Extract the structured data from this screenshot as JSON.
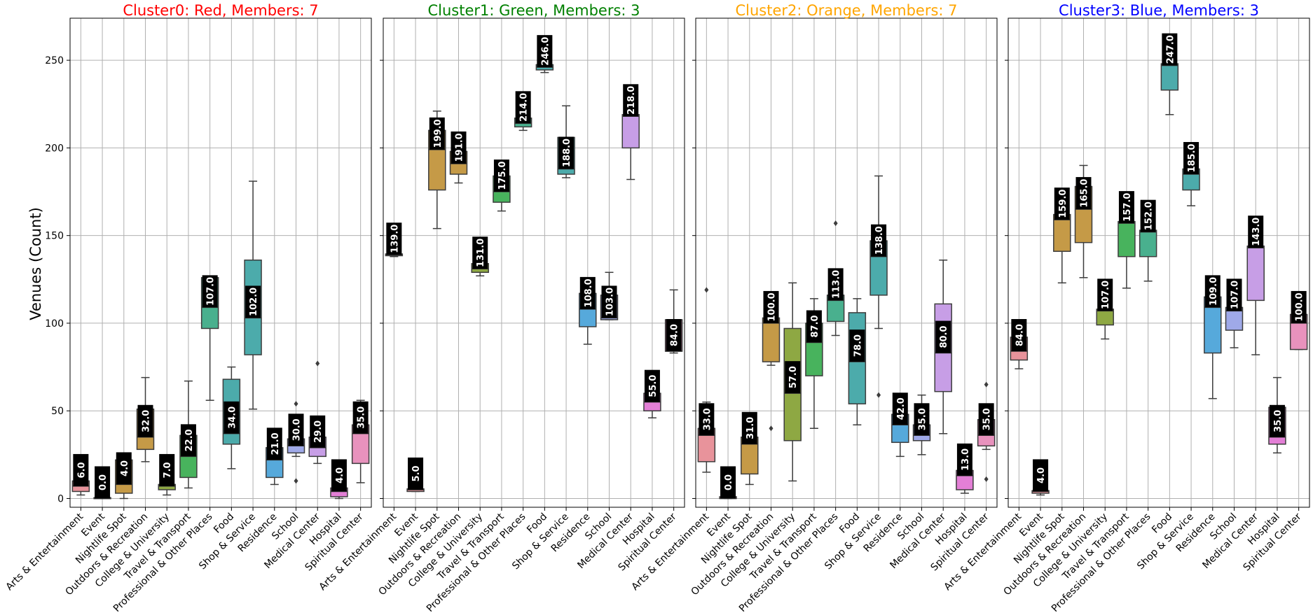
{
  "figure": {
    "ylabel": "Venues (Count)",
    "yticks": [
      0,
      50,
      100,
      150,
      200,
      250
    ]
  },
  "chart_data": [
    {
      "type": "box",
      "title": "Cluster0: Red, Members: 7",
      "title_color": "#ff0000",
      "ylabel": "Venues (Count)",
      "ylim": [
        -5,
        274
      ],
      "grid": true,
      "boxes": [
        {
          "category": "Arts & Entertainment",
          "color": "#e8939b",
          "whisker_low": 2,
          "q1": 4,
          "median": 7,
          "q3": 10,
          "whisker_high": 12,
          "outliers": [],
          "label": "6.0"
        },
        {
          "category": "Event",
          "color": "#e8939b",
          "whisker_low": 0,
          "q1": 0,
          "median": 0,
          "q3": 0.5,
          "whisker_high": 1,
          "outliers": [],
          "label": "0.0"
        },
        {
          "category": "Nightlife Spot",
          "color": "#c59a47",
          "whisker_low": 0,
          "q1": 3,
          "median": 8,
          "q3": 22,
          "whisker_high": 24,
          "outliers": [],
          "label": "4.0"
        },
        {
          "category": "Outdoors & Recreation",
          "color": "#c59a47",
          "whisker_low": 21,
          "q1": 28,
          "median": 35,
          "q3": 51,
          "whisker_high": 69,
          "outliers": [],
          "label": "32.0"
        },
        {
          "category": "College & University",
          "color": "#8ea843",
          "whisker_low": 2,
          "q1": 5,
          "median": 7,
          "q3": 8,
          "whisker_high": 21,
          "outliers": [
            23
          ],
          "label": "7.0"
        },
        {
          "category": "Travel & Transport",
          "color": "#48b35d",
          "whisker_low": 6,
          "q1": 12,
          "median": 24,
          "q3": 36,
          "whisker_high": 67,
          "outliers": [],
          "label": "22.0"
        },
        {
          "category": "Professional & Other Places",
          "color": "#49b08e",
          "whisker_low": 56,
          "q1": 97,
          "median": 109,
          "q3": 126,
          "whisker_high": 126,
          "outliers": [],
          "label": "107.0"
        },
        {
          "category": "Food",
          "color": "#4cabab",
          "whisker_low": 17,
          "q1": 31,
          "median": 37,
          "q3": 68,
          "whisker_high": 75,
          "outliers": [],
          "label": "34.0"
        },
        {
          "category": "Shop & Service",
          "color": "#4cabab",
          "whisker_low": 51,
          "q1": 82,
          "median": 103,
          "q3": 136,
          "whisker_high": 181,
          "outliers": [],
          "label": "102.0"
        },
        {
          "category": "Residence",
          "color": "#56a9db",
          "whisker_low": 8,
          "q1": 12,
          "median": 22,
          "q3": 29,
          "whisker_high": 33,
          "outliers": [],
          "label": "21.0"
        },
        {
          "category": "School",
          "color": "#9fa9e8",
          "whisker_low": 24,
          "q1": 26,
          "median": 30,
          "q3": 34,
          "whisker_high": 39,
          "outliers": [
            10,
            54
          ],
          "label": "30.0"
        },
        {
          "category": "Medical Center",
          "color": "#c79ee6",
          "whisker_low": 20,
          "q1": 24,
          "median": 29,
          "q3": 35,
          "whisker_high": 37,
          "outliers": [
            77
          ],
          "label": "29.0"
        },
        {
          "category": "Hospital",
          "color": "#e37fd6",
          "whisker_low": 0,
          "q1": 1,
          "median": 4,
          "q3": 6,
          "whisker_high": 6,
          "outliers": [],
          "label": "4.0"
        },
        {
          "category": "Spiritual Center",
          "color": "#e892bd",
          "whisker_low": 9,
          "q1": 20,
          "median": 37,
          "q3": 42,
          "whisker_high": 56,
          "outliers": [],
          "label": "35.0"
        }
      ]
    },
    {
      "type": "box",
      "title": "Cluster1: Green, Members: 3",
      "title_color": "#008000",
      "ylim": [
        -5,
        274
      ],
      "grid": true,
      "boxes": [
        {
          "category": "Arts & Entertainment",
          "color": "#e8939b",
          "whisker_low": 138,
          "q1": 138.5,
          "median": 139,
          "q3": 139.5,
          "whisker_high": 140,
          "outliers": [],
          "label": "139.0"
        },
        {
          "category": "Event",
          "color": "#e8939b",
          "whisker_low": 4,
          "q1": 4,
          "median": 5,
          "q3": 5.5,
          "whisker_high": 6,
          "outliers": [],
          "label": "5.0"
        },
        {
          "category": "Nightlife Spot",
          "color": "#c59a47",
          "whisker_low": 154,
          "q1": 176,
          "median": 199,
          "q3": 210,
          "whisker_high": 221,
          "outliers": [],
          "label": "199.0"
        },
        {
          "category": "Outdoors & Recreation",
          "color": "#c59a47",
          "whisker_low": 180,
          "q1": 185,
          "median": 191,
          "q3": 198,
          "whisker_high": 205,
          "outliers": [],
          "label": "191.0"
        },
        {
          "category": "College & University",
          "color": "#8ea843",
          "whisker_low": 127,
          "q1": 129,
          "median": 131,
          "q3": 134,
          "whisker_high": 137,
          "outliers": [],
          "label": "131.0"
        },
        {
          "category": "Travel & Transport",
          "color": "#48b35d",
          "whisker_low": 164,
          "q1": 169,
          "median": 175,
          "q3": 184,
          "whisker_high": 184,
          "outliers": [],
          "label": "175.0"
        },
        {
          "category": "Professional & Other Places",
          "color": "#49b08e",
          "whisker_low": 210,
          "q1": 212,
          "median": 214,
          "q3": 217,
          "whisker_high": 220,
          "outliers": [],
          "label": "214.0"
        },
        {
          "category": "Food",
          "color": "#4cabab",
          "whisker_low": 243,
          "q1": 244.5,
          "median": 246,
          "q3": 247.5,
          "whisker_high": 249,
          "outliers": [],
          "label": "246.0"
        },
        {
          "category": "Shop & Service",
          "color": "#4cabab",
          "whisker_low": 183,
          "q1": 185,
          "median": 188,
          "q3": 206,
          "whisker_high": 224,
          "outliers": [],
          "label": "188.0"
        },
        {
          "category": "Residence",
          "color": "#56a9db",
          "whisker_low": 88,
          "q1": 98,
          "median": 108,
          "q3": 117,
          "whisker_high": 126,
          "outliers": [],
          "label": "108.0"
        },
        {
          "category": "School",
          "color": "#9fa9e8",
          "whisker_low": 102,
          "q1": 102,
          "median": 103,
          "q3": 116,
          "whisker_high": 129,
          "outliers": [],
          "label": "103.0"
        },
        {
          "category": "Medical Center",
          "color": "#c79ee6",
          "whisker_low": 182,
          "q1": 200,
          "median": 218,
          "q3": 219,
          "whisker_high": 220,
          "outliers": [],
          "label": "218.0"
        },
        {
          "category": "Hospital",
          "color": "#e37fd6",
          "whisker_low": 46,
          "q1": 50,
          "median": 55,
          "q3": 60,
          "whisker_high": 60,
          "outliers": [],
          "label": "55.0"
        },
        {
          "category": "Spiritual Center",
          "color": "#e892bd",
          "whisker_low": 83,
          "q1": 84,
          "median": 84,
          "q3": 102,
          "whisker_high": 119,
          "outliers": [],
          "label": "84.0"
        }
      ]
    },
    {
      "type": "box",
      "title": "Cluster2: Orange, Members: 7",
      "title_color": "#ffa500",
      "ylim": [
        -5,
        274
      ],
      "grid": true,
      "boxes": [
        {
          "category": "Arts & Entertainment",
          "color": "#e8939b",
          "whisker_low": 15,
          "q1": 21,
          "median": 36,
          "q3": 40,
          "whisker_high": 55,
          "outliers": [
            119
          ],
          "label": "33.0"
        },
        {
          "category": "Event",
          "color": "#e8939b",
          "whisker_low": 0,
          "q1": 0,
          "median": 0,
          "q3": 1,
          "whisker_high": 2,
          "outliers": [],
          "label": "0.0"
        },
        {
          "category": "Nightlife Spot",
          "color": "#c59a47",
          "whisker_low": 8,
          "q1": 14,
          "median": 31,
          "q3": 35,
          "whisker_high": 35,
          "outliers": [],
          "label": "31.0"
        },
        {
          "category": "Outdoors & Recreation",
          "color": "#c59a47",
          "whisker_low": 76,
          "q1": 78,
          "median": 100,
          "q3": 103,
          "whisker_high": 103,
          "outliers": [
            40
          ],
          "label": "100.0"
        },
        {
          "category": "College & University",
          "color": "#8ea843",
          "whisker_low": 10,
          "q1": 33,
          "median": 60,
          "q3": 97,
          "whisker_high": 123,
          "outliers": [],
          "label": "57.0"
        },
        {
          "category": "Travel & Transport",
          "color": "#48b35d",
          "whisker_low": 40,
          "q1": 70,
          "median": 89,
          "q3": 100,
          "whisker_high": 114,
          "outliers": [],
          "label": "87.0"
        },
        {
          "category": "Professional & Other Places",
          "color": "#49b08e",
          "whisker_low": 93,
          "q1": 101,
          "median": 113,
          "q3": 116,
          "whisker_high": 116,
          "outliers": [
            157
          ],
          "label": "113.0"
        },
        {
          "category": "Food",
          "color": "#4cabab",
          "whisker_low": 42,
          "q1": 54,
          "median": 78,
          "q3": 106,
          "whisker_high": 114,
          "outliers": [],
          "label": "78.0"
        },
        {
          "category": "Shop & Service",
          "color": "#4cabab",
          "whisker_low": 97,
          "q1": 116,
          "median": 138,
          "q3": 147,
          "whisker_high": 184,
          "outliers": [
            59
          ],
          "label": "138.0"
        },
        {
          "category": "Residence",
          "color": "#56a9db",
          "whisker_low": 24,
          "q1": 32,
          "median": 42,
          "q3": 48,
          "whisker_high": 49,
          "outliers": [],
          "label": "42.0"
        },
        {
          "category": "School",
          "color": "#9fa9e8",
          "whisker_low": 25,
          "q1": 33,
          "median": 36,
          "q3": 42,
          "whisker_high": 59,
          "outliers": [],
          "label": "35.0"
        },
        {
          "category": "Medical Center",
          "color": "#c79ee6",
          "whisker_low": 37,
          "q1": 61,
          "median": 83,
          "q3": 111,
          "whisker_high": 136,
          "outliers": [],
          "label": "80.0"
        },
        {
          "category": "Hospital",
          "color": "#e37fd6",
          "whisker_low": 3,
          "q1": 5,
          "median": 13,
          "q3": 16,
          "whisker_high": 16,
          "outliers": [],
          "label": "13.0"
        },
        {
          "category": "Spiritual Center",
          "color": "#e892bd",
          "whisker_low": 28,
          "q1": 30,
          "median": 36,
          "q3": 45,
          "whisker_high": 50,
          "outliers": [
            11,
            65
          ],
          "label": "35.0"
        }
      ]
    },
    {
      "type": "box",
      "title": "Cluster3: Blue, Members: 3",
      "title_color": "#0000ff",
      "ylim": [
        -5,
        274
      ],
      "grid": true,
      "boxes": [
        {
          "category": "Arts & Entertainment",
          "color": "#e8939b",
          "whisker_low": 74,
          "q1": 79,
          "median": 84,
          "q3": 92,
          "whisker_high": 100,
          "outliers": [],
          "label": "84.0"
        },
        {
          "category": "Event",
          "color": "#e8939b",
          "whisker_low": 2,
          "q1": 3,
          "median": 4,
          "q3": 4.5,
          "whisker_high": 5,
          "outliers": [],
          "label": "4.0"
        },
        {
          "category": "Nightlife Spot",
          "color": "#c59a47",
          "whisker_low": 123,
          "q1": 141,
          "median": 159,
          "q3": 162,
          "whisker_high": 165,
          "outliers": [],
          "label": "159.0"
        },
        {
          "category": "Outdoors & Recreation",
          "color": "#c59a47",
          "whisker_low": 126,
          "q1": 146,
          "median": 165,
          "q3": 178,
          "whisker_high": 190,
          "outliers": [],
          "label": "165.0"
        },
        {
          "category": "College & University",
          "color": "#8ea843",
          "whisker_low": 91,
          "q1": 99,
          "median": 107,
          "q3": 108,
          "whisker_high": 109,
          "outliers": [],
          "label": "107.0"
        },
        {
          "category": "Travel & Transport",
          "color": "#48b35d",
          "whisker_low": 120,
          "q1": 138,
          "median": 157,
          "q3": 158,
          "whisker_high": 159,
          "outliers": [],
          "label": "157.0"
        },
        {
          "category": "Professional & Other Places",
          "color": "#49b08e",
          "whisker_low": 124,
          "q1": 138,
          "median": 152,
          "q3": 153,
          "whisker_high": 154,
          "outliers": [],
          "label": "152.0"
        },
        {
          "category": "Food",
          "color": "#4cabab",
          "whisker_low": 219,
          "q1": 233,
          "median": 247,
          "q3": 248,
          "whisker_high": 249,
          "outliers": [],
          "label": "247.0"
        },
        {
          "category": "Shop & Service",
          "color": "#4cabab",
          "whisker_low": 167,
          "q1": 176,
          "median": 185,
          "q3": 188,
          "whisker_high": 190,
          "outliers": [],
          "label": "185.0"
        },
        {
          "category": "Residence",
          "color": "#56a9db",
          "whisker_low": 57,
          "q1": 83,
          "median": 109,
          "q3": 115,
          "whisker_high": 120,
          "outliers": [],
          "label": "109.0"
        },
        {
          "category": "School",
          "color": "#9fa9e8",
          "whisker_low": 86,
          "q1": 96,
          "median": 107,
          "q3": 109,
          "whisker_high": 111,
          "outliers": [],
          "label": "107.0"
        },
        {
          "category": "Medical Center",
          "color": "#c79ee6",
          "whisker_low": 82,
          "q1": 113,
          "median": 143,
          "q3": 144,
          "whisker_high": 145,
          "outliers": [],
          "label": "143.0"
        },
        {
          "category": "Hospital",
          "color": "#e37fd6",
          "whisker_low": 26,
          "q1": 31,
          "median": 35,
          "q3": 52,
          "whisker_high": 69,
          "outliers": [],
          "label": "35.0"
        },
        {
          "category": "Spiritual Center",
          "color": "#e892bd",
          "whisker_low": 85,
          "q1": 85,
          "median": 100,
          "q3": 105,
          "whisker_high": 105,
          "outliers": [],
          "label": "100.0"
        }
      ]
    }
  ]
}
